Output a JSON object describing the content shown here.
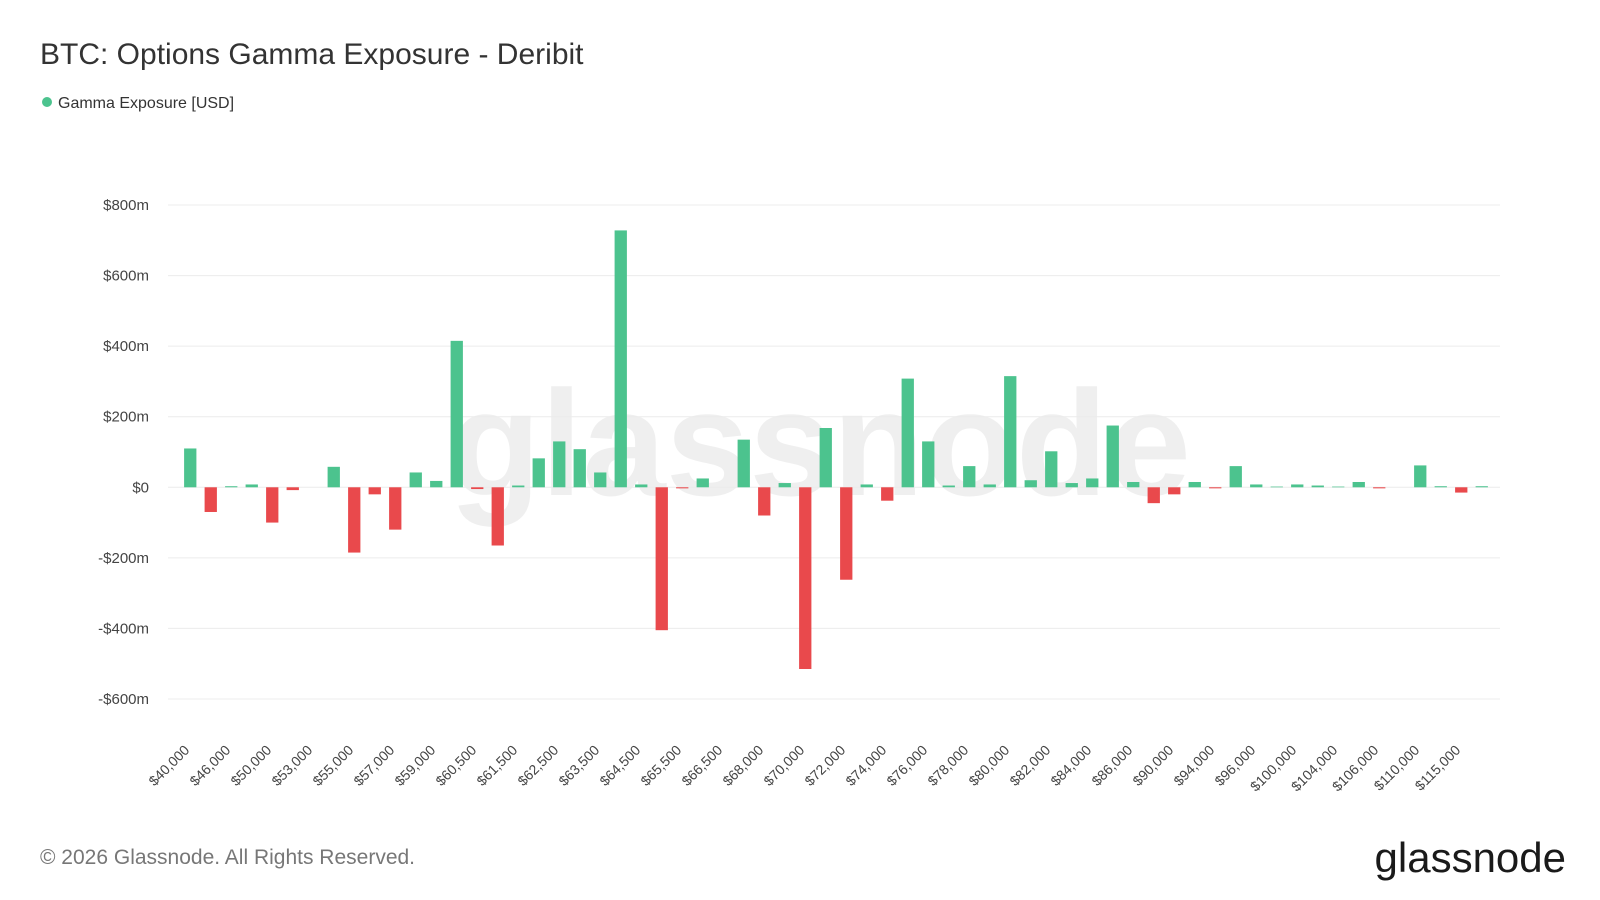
{
  "chart_data": {
    "type": "bar",
    "title": "BTC: Options Gamma Exposure - Deribit",
    "watermark": "glassnode",
    "footer": "© 2026 Glassnode. All Rights Reserved.",
    "brand": "glassnode",
    "grid": true,
    "ylim": [
      -600,
      800
    ],
    "yticks": [
      {
        "value": -600,
        "label": "-$600m"
      },
      {
        "value": -400,
        "label": "-$400m"
      },
      {
        "value": -200,
        "label": "-$200m"
      },
      {
        "value": 0,
        "label": "$0"
      },
      {
        "value": 200,
        "label": "$200m"
      },
      {
        "value": 400,
        "label": "$400m"
      },
      {
        "value": 600,
        "label": "$600m"
      },
      {
        "value": 800,
        "label": "$800m"
      }
    ],
    "categories": [
      "$40,000",
      null,
      "$46,000",
      null,
      "$50,000",
      null,
      "$53,000",
      null,
      "$55,000",
      null,
      "$57,000",
      null,
      "$59,000",
      null,
      "$60,500",
      null,
      "$61,500",
      null,
      "$62,500",
      null,
      "$63,500",
      null,
      "$64,500",
      null,
      "$65,500",
      null,
      "$66,500",
      null,
      "$68,000",
      null,
      "$70,000",
      null,
      "$72,000",
      null,
      "$74,000",
      null,
      "$76,000",
      null,
      "$78,000",
      null,
      "$80,000",
      null,
      "$82,000",
      null,
      "$84,000",
      null,
      "$86,000",
      null,
      "$90,000",
      null,
      "$94,000",
      null,
      "$96,000",
      null,
      "$100,000",
      null,
      "$104,000",
      null,
      "$106,000",
      null,
      "$110,000",
      null,
      "$115,000",
      null
    ],
    "series": [
      {
        "name": "Gamma Exposure [USD]",
        "color": "#4cc38e",
        "negative_color": "#e9494c",
        "values": [
          110,
          -70,
          3,
          8,
          -100,
          -8,
          0,
          58,
          -185,
          -20,
          -120,
          42,
          18,
          415,
          -5,
          -165,
          5,
          82,
          130,
          108,
          42,
          728,
          8,
          -405,
          -3,
          25,
          0,
          135,
          -80,
          12,
          -515,
          168,
          -262,
          8,
          -38,
          308,
          130,
          5,
          60,
          8,
          315,
          20,
          102,
          12,
          25,
          175,
          15,
          -45,
          -20,
          15,
          -3,
          60,
          8,
          2,
          8,
          5,
          2,
          15,
          -3,
          0,
          62,
          3,
          -15,
          3
        ]
      }
    ]
  }
}
